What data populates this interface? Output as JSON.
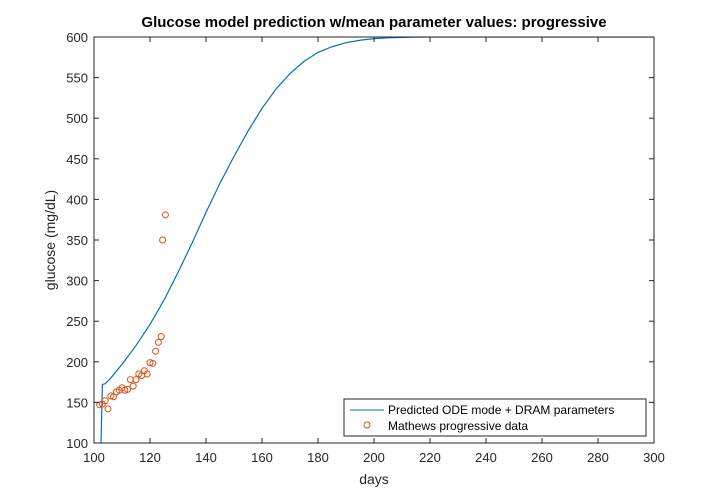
{
  "chart_data": {
    "type": "line",
    "title": "Glucose model prediction w/mean parameter values: progressive",
    "xlabel": "days",
    "ylabel": "glucose (mg/dL)",
    "xlim": [
      100,
      300
    ],
    "ylim": [
      100,
      600
    ],
    "xticks": [
      100,
      120,
      140,
      160,
      180,
      200,
      220,
      240,
      260,
      280,
      300
    ],
    "yticks": [
      100,
      150,
      200,
      250,
      300,
      350,
      400,
      450,
      500,
      550,
      600
    ],
    "grid": false,
    "legend_position": "bottom-right",
    "series": [
      {
        "name": "Predicted ODE mode + DRAM parameters",
        "kind": "line",
        "color": "#0072BD",
        "x": [
          102.5,
          103,
          104,
          106,
          110,
          115,
          120,
          125,
          130,
          135,
          140,
          145,
          150,
          155,
          160,
          165,
          170,
          175,
          180,
          185,
          190,
          195,
          200,
          205,
          210,
          215,
          220,
          225,
          230,
          240,
          250,
          260,
          280,
          300
        ],
        "y": [
          100,
          172,
          173,
          180,
          197,
          220,
          246,
          276,
          310,
          346,
          384,
          420,
          453,
          484,
          512,
          536,
          555,
          570,
          581,
          588,
          593,
          596,
          598,
          599,
          599.5,
          599.8,
          600,
          600,
          600,
          600,
          600,
          600,
          600,
          600
        ]
      },
      {
        "name": "Mathews progressive data",
        "kind": "scatter",
        "color": "#D95319",
        "x": [
          102,
          103,
          104,
          105,
          106,
          107,
          108,
          109,
          110,
          111,
          112,
          113,
          114,
          115,
          116,
          117,
          118,
          119,
          120,
          121,
          122,
          123,
          124,
          124.5,
          125.5
        ],
        "y": [
          147,
          148,
          152,
          142,
          158,
          157,
          163,
          165,
          168,
          165,
          166,
          178,
          170,
          178,
          185,
          183,
          189,
          185,
          199,
          198,
          213,
          224,
          231,
          350,
          381
        ]
      }
    ]
  }
}
